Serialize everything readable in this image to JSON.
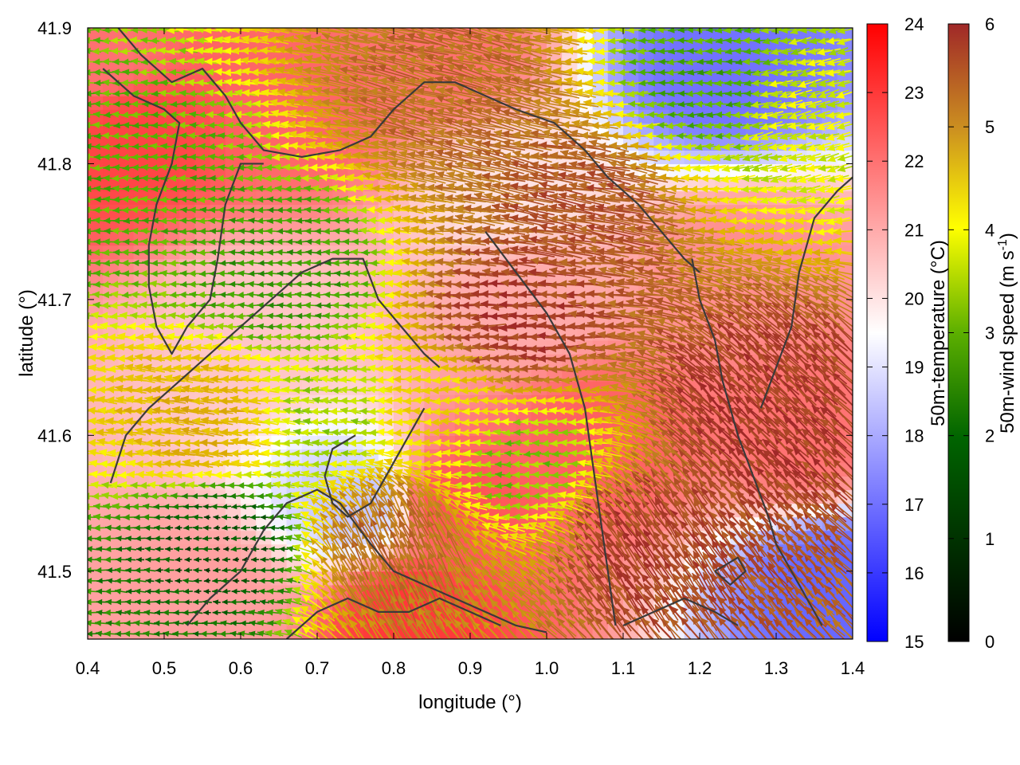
{
  "chart_data": {
    "type": "heatmap",
    "overlay": "wind vector field with coastline contours",
    "xlabel": "longitude (°)",
    "ylabel": "latitude (°)",
    "xlim": [
      0.4,
      1.4
    ],
    "ylim": [
      41.45,
      41.9
    ],
    "xticks": [
      "0.4",
      "0.5",
      "0.6",
      "0.7",
      "0.8",
      "0.9",
      "1.0",
      "1.1",
      "1.2",
      "1.3",
      "1.4"
    ],
    "xtick_values": [
      0.4,
      0.5,
      0.6,
      0.7,
      0.8,
      0.9,
      1.0,
      1.1,
      1.2,
      1.3,
      1.4
    ],
    "yticks": [
      "41.5",
      "41.6",
      "41.7",
      "41.8",
      "41.9"
    ],
    "ytick_values": [
      41.5,
      41.6,
      41.7,
      41.8,
      41.9
    ],
    "colorbars": [
      {
        "label": "50m-temperature (°C)",
        "range": [
          15,
          24
        ],
        "ticks": [
          "15",
          "16",
          "17",
          "18",
          "19",
          "20",
          "21",
          "22",
          "23",
          "24"
        ],
        "tick_values": [
          15,
          16,
          17,
          18,
          19,
          20,
          21,
          22,
          23,
          24
        ],
        "colors": [
          "#0000ff",
          "#ffffff",
          "#ff0000"
        ]
      },
      {
        "label": "50m-wind speed (m s",
        "label_sup": "-1",
        "label_end": ")",
        "range": [
          0,
          6
        ],
        "ticks": [
          "0",
          "1",
          "2",
          "3",
          "4",
          "5",
          "6"
        ],
        "tick_values": [
          0,
          1,
          2,
          3,
          4,
          5,
          6
        ],
        "colors": [
          "#000000",
          "#006400",
          "#4caf00",
          "#ffff00",
          "#e0b000",
          "#c08020",
          "#a02828"
        ]
      }
    ],
    "temperature_zones": [
      {
        "lon": 0.46,
        "lat": 41.82,
        "temp": 22.8
      },
      {
        "lon": 0.41,
        "lat": 41.88,
        "temp": 22.0
      },
      {
        "lon": 0.68,
        "lat": 41.84,
        "temp": 22.2
      },
      {
        "lon": 0.86,
        "lat": 41.88,
        "temp": 22.0
      },
      {
        "lon": 1.25,
        "lat": 41.72,
        "temp": 21.5
      },
      {
        "lon": 1.33,
        "lat": 41.6,
        "temp": 22.0
      },
      {
        "lon": 1.07,
        "lat": 41.6,
        "temp": 22.3
      },
      {
        "lon": 0.88,
        "lat": 41.55,
        "temp": 22.5
      },
      {
        "lon": 0.82,
        "lat": 41.47,
        "temp": 23.0
      },
      {
        "lon": 0.55,
        "lat": 41.48,
        "temp": 21.2
      },
      {
        "lon": 0.98,
        "lat": 41.7,
        "temp": 21.0
      },
      {
        "lon": 1.22,
        "lat": 41.87,
        "temp": 17.0
      },
      {
        "lon": 1.38,
        "lat": 41.49,
        "temp": 16.8
      },
      {
        "lon": 0.75,
        "lat": 41.55,
        "temp": 18.5
      },
      {
        "lon": 0.95,
        "lat": 41.78,
        "temp": 20.0
      },
      {
        "lon": 0.62,
        "lat": 41.68,
        "temp": 20.5
      }
    ],
    "wind_regimes": [
      {
        "lon": 0.45,
        "lat": 41.78,
        "speed": 2.0,
        "dir_deg": 180
      },
      {
        "lon": 0.66,
        "lat": 41.72,
        "speed": 1.7,
        "dir_deg": 180
      },
      {
        "lon": 0.58,
        "lat": 41.52,
        "speed": 0.8,
        "dir_deg": 180
      },
      {
        "lon": 0.72,
        "lat": 41.61,
        "speed": 2.5,
        "dir_deg": 175
      },
      {
        "lon": 0.97,
        "lat": 41.68,
        "speed": 5.8,
        "dir_deg": 180
      },
      {
        "lon": 1.05,
        "lat": 41.77,
        "speed": 5.5,
        "dir_deg": 170
      },
      {
        "lon": 0.88,
        "lat": 41.85,
        "speed": 5.2,
        "dir_deg": 165
      },
      {
        "lon": 1.28,
        "lat": 41.62,
        "speed": 5.8,
        "dir_deg": 135
      },
      {
        "lon": 1.13,
        "lat": 41.52,
        "speed": 5.7,
        "dir_deg": 125
      },
      {
        "lon": 0.8,
        "lat": 41.52,
        "speed": 5.2,
        "dir_deg": 115
      },
      {
        "lon": 0.56,
        "lat": 41.61,
        "speed": 4.0,
        "dir_deg": 175
      },
      {
        "lon": 0.87,
        "lat": 41.62,
        "speed": 3.5,
        "dir_deg": 180
      },
      {
        "lon": 1.22,
        "lat": 41.86,
        "speed": 1.9,
        "dir_deg": 185
      },
      {
        "lon": 0.97,
        "lat": 41.58,
        "speed": 2.3,
        "dir_deg": 180
      },
      {
        "lon": 1.34,
        "lat": 41.84,
        "speed": 2.8,
        "dir_deg": 195
      }
    ],
    "coastlines": [
      [
        [
          0.44,
          41.9
        ],
        [
          0.47,
          41.88
        ],
        [
          0.51,
          41.86
        ],
        [
          0.55,
          41.87
        ],
        [
          0.58,
          41.85
        ],
        [
          0.6,
          41.83
        ],
        [
          0.63,
          41.81
        ],
        [
          0.68,
          41.805
        ],
        [
          0.73,
          41.81
        ],
        [
          0.77,
          41.82
        ],
        [
          0.8,
          41.84
        ],
        [
          0.82,
          41.85
        ],
        [
          0.84,
          41.86
        ],
        [
          0.88,
          41.86
        ],
        [
          0.92,
          41.85
        ],
        [
          0.96,
          41.84
        ],
        [
          1.01,
          41.83
        ],
        [
          1.05,
          41.81
        ],
        [
          1.08,
          41.79
        ],
        [
          1.12,
          41.77
        ],
        [
          1.15,
          41.75
        ],
        [
          1.18,
          41.73
        ],
        [
          1.2,
          41.72
        ]
      ],
      [
        [
          0.42,
          41.87
        ],
        [
          0.46,
          41.85
        ],
        [
          0.5,
          41.84
        ],
        [
          0.52,
          41.83
        ],
        [
          0.51,
          41.8
        ],
        [
          0.49,
          41.77
        ],
        [
          0.48,
          41.74
        ],
        [
          0.48,
          41.71
        ],
        [
          0.49,
          41.68
        ],
        [
          0.51,
          41.66
        ],
        [
          0.53,
          41.68
        ],
        [
          0.56,
          41.7
        ],
        [
          0.57,
          41.73
        ],
        [
          0.58,
          41.77
        ],
        [
          0.6,
          41.8
        ],
        [
          0.63,
          41.8
        ]
      ],
      [
        [
          0.43,
          41.565
        ],
        [
          0.45,
          41.6
        ],
        [
          0.48,
          41.62
        ],
        [
          0.52,
          41.64
        ],
        [
          0.56,
          41.66
        ],
        [
          0.6,
          41.68
        ],
        [
          0.64,
          41.7
        ],
        [
          0.68,
          41.72
        ],
        [
          0.72,
          41.73
        ],
        [
          0.76,
          41.73
        ],
        [
          0.78,
          41.7
        ],
        [
          0.81,
          41.68
        ],
        [
          0.84,
          41.66
        ],
        [
          0.86,
          41.65
        ]
      ],
      [
        [
          0.75,
          41.6
        ],
        [
          0.72,
          41.59
        ],
        [
          0.71,
          41.57
        ],
        [
          0.72,
          41.55
        ],
        [
          0.74,
          41.54
        ],
        [
          0.77,
          41.55
        ],
        [
          0.8,
          41.58
        ],
        [
          0.82,
          41.6
        ],
        [
          0.84,
          41.62
        ]
      ],
      [
        [
          0.53,
          41.46
        ],
        [
          0.56,
          41.48
        ],
        [
          0.6,
          41.5
        ],
        [
          0.63,
          41.53
        ],
        [
          0.66,
          41.55
        ],
        [
          0.7,
          41.56
        ],
        [
          0.73,
          41.55
        ],
        [
          0.77,
          41.52
        ],
        [
          0.8,
          41.5
        ],
        [
          0.84,
          41.49
        ],
        [
          0.88,
          41.48
        ],
        [
          0.92,
          41.47
        ],
        [
          0.96,
          41.46
        ],
        [
          1.0,
          41.455
        ]
      ],
      [
        [
          0.66,
          41.45
        ],
        [
          0.7,
          41.47
        ],
        [
          0.74,
          41.48
        ],
        [
          0.78,
          41.47
        ],
        [
          0.82,
          41.47
        ],
        [
          0.86,
          41.48
        ],
        [
          0.9,
          41.47
        ],
        [
          0.94,
          41.46
        ]
      ],
      [
        [
          0.92,
          41.75
        ],
        [
          0.96,
          41.72
        ],
        [
          1.0,
          41.69
        ],
        [
          1.03,
          41.66
        ],
        [
          1.05,
          41.62
        ],
        [
          1.06,
          41.58
        ],
        [
          1.07,
          41.54
        ],
        [
          1.08,
          41.5
        ],
        [
          1.09,
          41.46
        ]
      ],
      [
        [
          1.19,
          41.73
        ],
        [
          1.2,
          41.7
        ],
        [
          1.22,
          41.67
        ],
        [
          1.23,
          41.64
        ],
        [
          1.25,
          41.6
        ],
        [
          1.27,
          41.57
        ],
        [
          1.29,
          41.54
        ],
        [
          1.3,
          41.52
        ],
        [
          1.32,
          41.5
        ],
        [
          1.34,
          41.48
        ],
        [
          1.36,
          41.46
        ]
      ],
      [
        [
          1.1,
          41.46
        ],
        [
          1.14,
          41.47
        ],
        [
          1.18,
          41.48
        ],
        [
          1.22,
          41.47
        ],
        [
          1.25,
          41.46
        ]
      ],
      [
        [
          1.28,
          41.62
        ],
        [
          1.3,
          41.65
        ],
        [
          1.32,
          41.68
        ],
        [
          1.33,
          41.72
        ],
        [
          1.35,
          41.76
        ],
        [
          1.38,
          41.78
        ],
        [
          1.4,
          41.79
        ]
      ],
      [
        [
          1.22,
          41.5
        ],
        [
          1.25,
          41.51
        ],
        [
          1.26,
          41.5
        ],
        [
          1.24,
          41.49
        ],
        [
          1.22,
          41.5
        ]
      ]
    ]
  }
}
